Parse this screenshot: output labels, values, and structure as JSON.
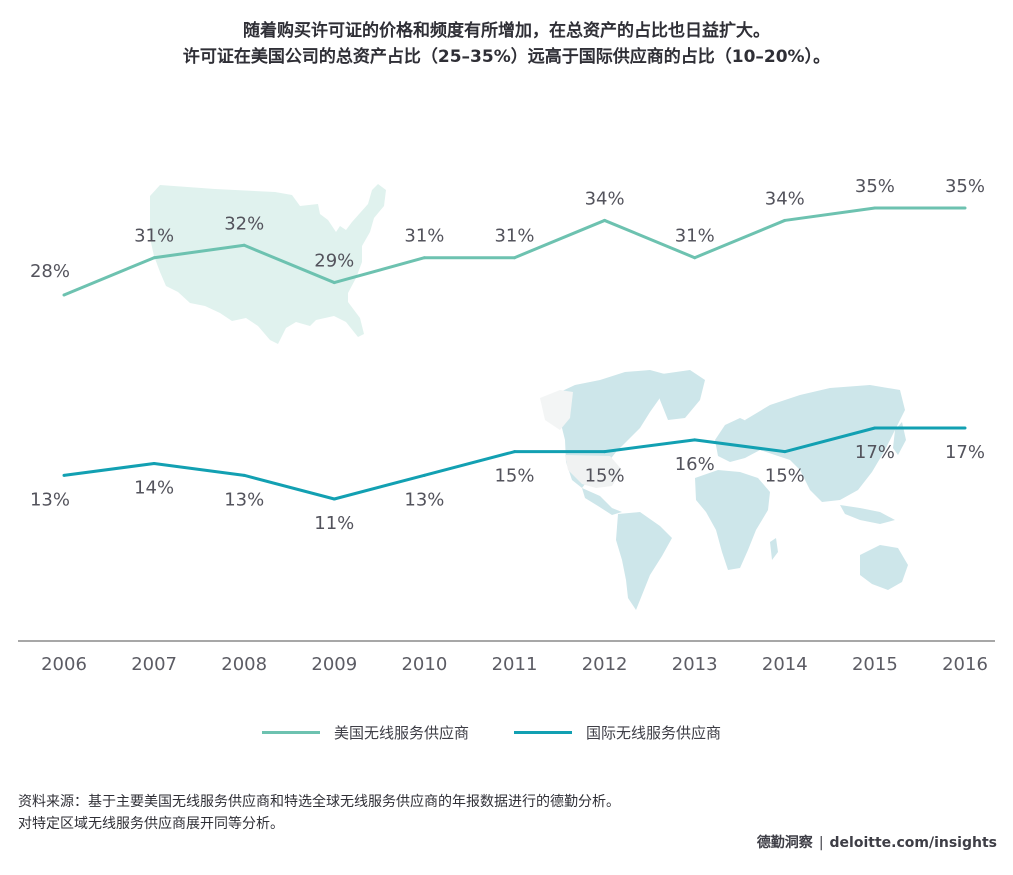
{
  "title": {
    "line1": "随着购买许可证的价格和频度有所增加，在总资产的占比也日益扩大。",
    "line2": "许可证在美国公司的总资产占比（25–35%）远高于国际供应商的占比（10–20%）。"
  },
  "chart_data": {
    "type": "line",
    "title": "随着购买许可证的价格和频度有所增加，在总资产的占比也日益扩大。许可证在美国公司的总资产占比（25–35%）远高于国际供应商的占比（10–20%）。",
    "xlabel": "",
    "ylabel": "",
    "x": [
      "2006",
      "2007",
      "2008",
      "2009",
      "2010",
      "2011",
      "2012",
      "2013",
      "2014",
      "2015",
      "2016"
    ],
    "series": [
      {
        "name": "美国无线服务供应商",
        "color": "#6dc2b0",
        "values": [
          28,
          31,
          32,
          29,
          31,
          31,
          34,
          31,
          34,
          35,
          35
        ],
        "labels": [
          "28%",
          "31%",
          "32%",
          "29%",
          "31%",
          "31%",
          "34%",
          "31%",
          "34%",
          "35%",
          "35%"
        ],
        "label_position": "above"
      },
      {
        "name": "国际无线服务供应商",
        "color": "#12a0b2",
        "values": [
          13,
          14,
          13,
          11,
          13,
          15,
          15,
          16,
          15,
          17,
          17
        ],
        "labels": [
          "13%",
          "14%",
          "13%",
          "11%",
          "13%",
          "15%",
          "15%",
          "16%",
          "15%",
          "17%",
          "17%"
        ],
        "label_position": "below"
      }
    ],
    "grid": false,
    "legend": "bottom-center",
    "background_images": [
      "us-map",
      "world-map"
    ]
  },
  "legend": {
    "items": [
      {
        "label": "美国无线服务供应商",
        "color": "#6dc2b0"
      },
      {
        "label": "国际无线服务供应商",
        "color": "#12a0b2"
      }
    ]
  },
  "footnote": {
    "line1": "资料来源：基于主要美国无线服务供应商和特选全球无线服务供应商的年报数据进行的德勤分析。",
    "line2": "对特定区域无线服务供应商展开同等分析。"
  },
  "credit": {
    "brand": "德勤洞察",
    "separator": "|",
    "url": "deloitte.com/insights"
  },
  "colors": {
    "us_map": "#e0f2ee",
    "world_map": "#cde6ea",
    "axis": "#8a8a8a"
  }
}
